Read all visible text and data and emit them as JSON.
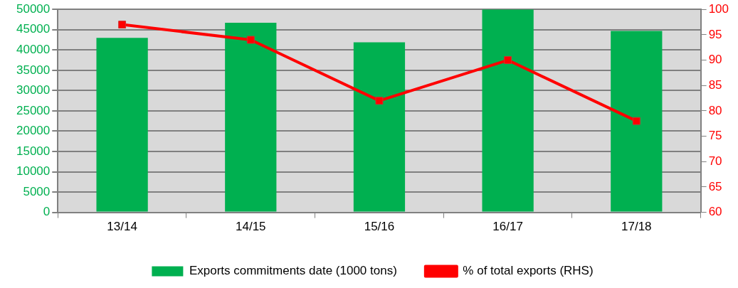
{
  "chart_data": {
    "type": "bar",
    "categories": [
      "13/14",
      "14/15",
      "15/16",
      "16/17",
      "17/18"
    ],
    "series": [
      {
        "name": "Exports commitments date (1000 tons)",
        "color": "#00b050",
        "values": [
          43000,
          46700,
          41900,
          50000,
          44700
        ]
      },
      {
        "name": "% of total exports (RHS)",
        "type": "line",
        "axis": "y2",
        "color": "#ff0000",
        "marker": "square",
        "values": [
          97,
          94,
          82,
          90,
          78
        ]
      }
    ],
    "ylim": [
      0,
      50000
    ],
    "yticks": [
      0,
      5000,
      10000,
      15000,
      20000,
      25000,
      30000,
      35000,
      40000,
      45000,
      50000
    ],
    "y2lim": [
      60,
      100
    ],
    "y2ticks": [
      60,
      65,
      70,
      75,
      80,
      85,
      90,
      95,
      100
    ],
    "grid": "y",
    "legend": "bottom"
  }
}
